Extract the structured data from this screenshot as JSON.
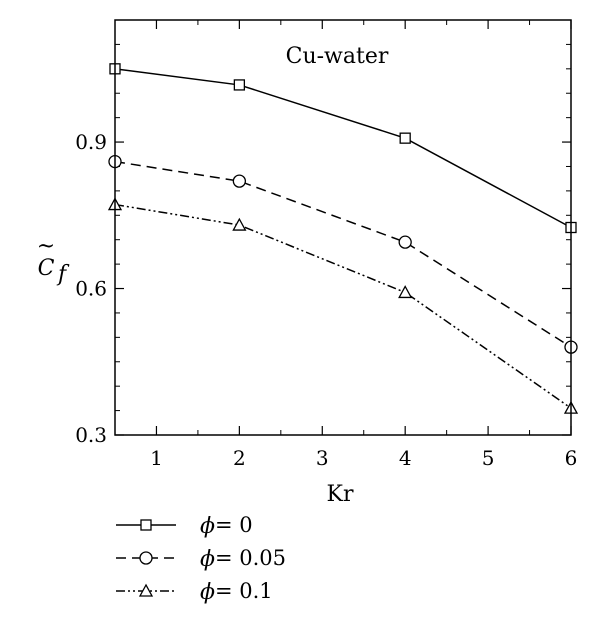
{
  "chart_data": {
    "type": "line",
    "title": "",
    "annotation": "Cu-water",
    "xlabel": "Kr",
    "ylabel_main": "C",
    "ylabel_accent": "~",
    "ylabel_sub": "f",
    "xlim": [
      0.5,
      6
    ],
    "ylim": [
      0.3,
      1.15
    ],
    "xticks": [
      1,
      2,
      3,
      4,
      5,
      6
    ],
    "xtick_labels": [
      "1",
      "2",
      "3",
      "4",
      "5",
      "6"
    ],
    "yticks": [
      0.3,
      0.6,
      0.9
    ],
    "ytick_labels": [
      "0.3",
      "0.6",
      "0.9"
    ],
    "grid": false,
    "legend_position": "bottom-left, below plot",
    "series": [
      {
        "name": "ϕ = 0",
        "symbol": "ϕ",
        "value_text": " = 0",
        "marker": "square",
        "dash": "solid",
        "x": [
          0.5,
          2,
          4,
          6
        ],
        "y": [
          1.05,
          1.017,
          0.908,
          0.725
        ]
      },
      {
        "name": "ϕ = 0.05",
        "symbol": "ϕ",
        "value_text": " = 0.05",
        "marker": "circle",
        "dash": "dashed",
        "x": [
          0.5,
          2,
          4,
          6
        ],
        "y": [
          0.86,
          0.82,
          0.695,
          0.48
        ]
      },
      {
        "name": "ϕ = 0.1",
        "symbol": "ϕ",
        "value_text": " = 0.1",
        "marker": "triangle",
        "dash": "dash-dot-dot",
        "x": [
          0.5,
          2,
          4,
          6
        ],
        "y": [
          0.772,
          0.73,
          0.592,
          0.355
        ]
      }
    ]
  }
}
